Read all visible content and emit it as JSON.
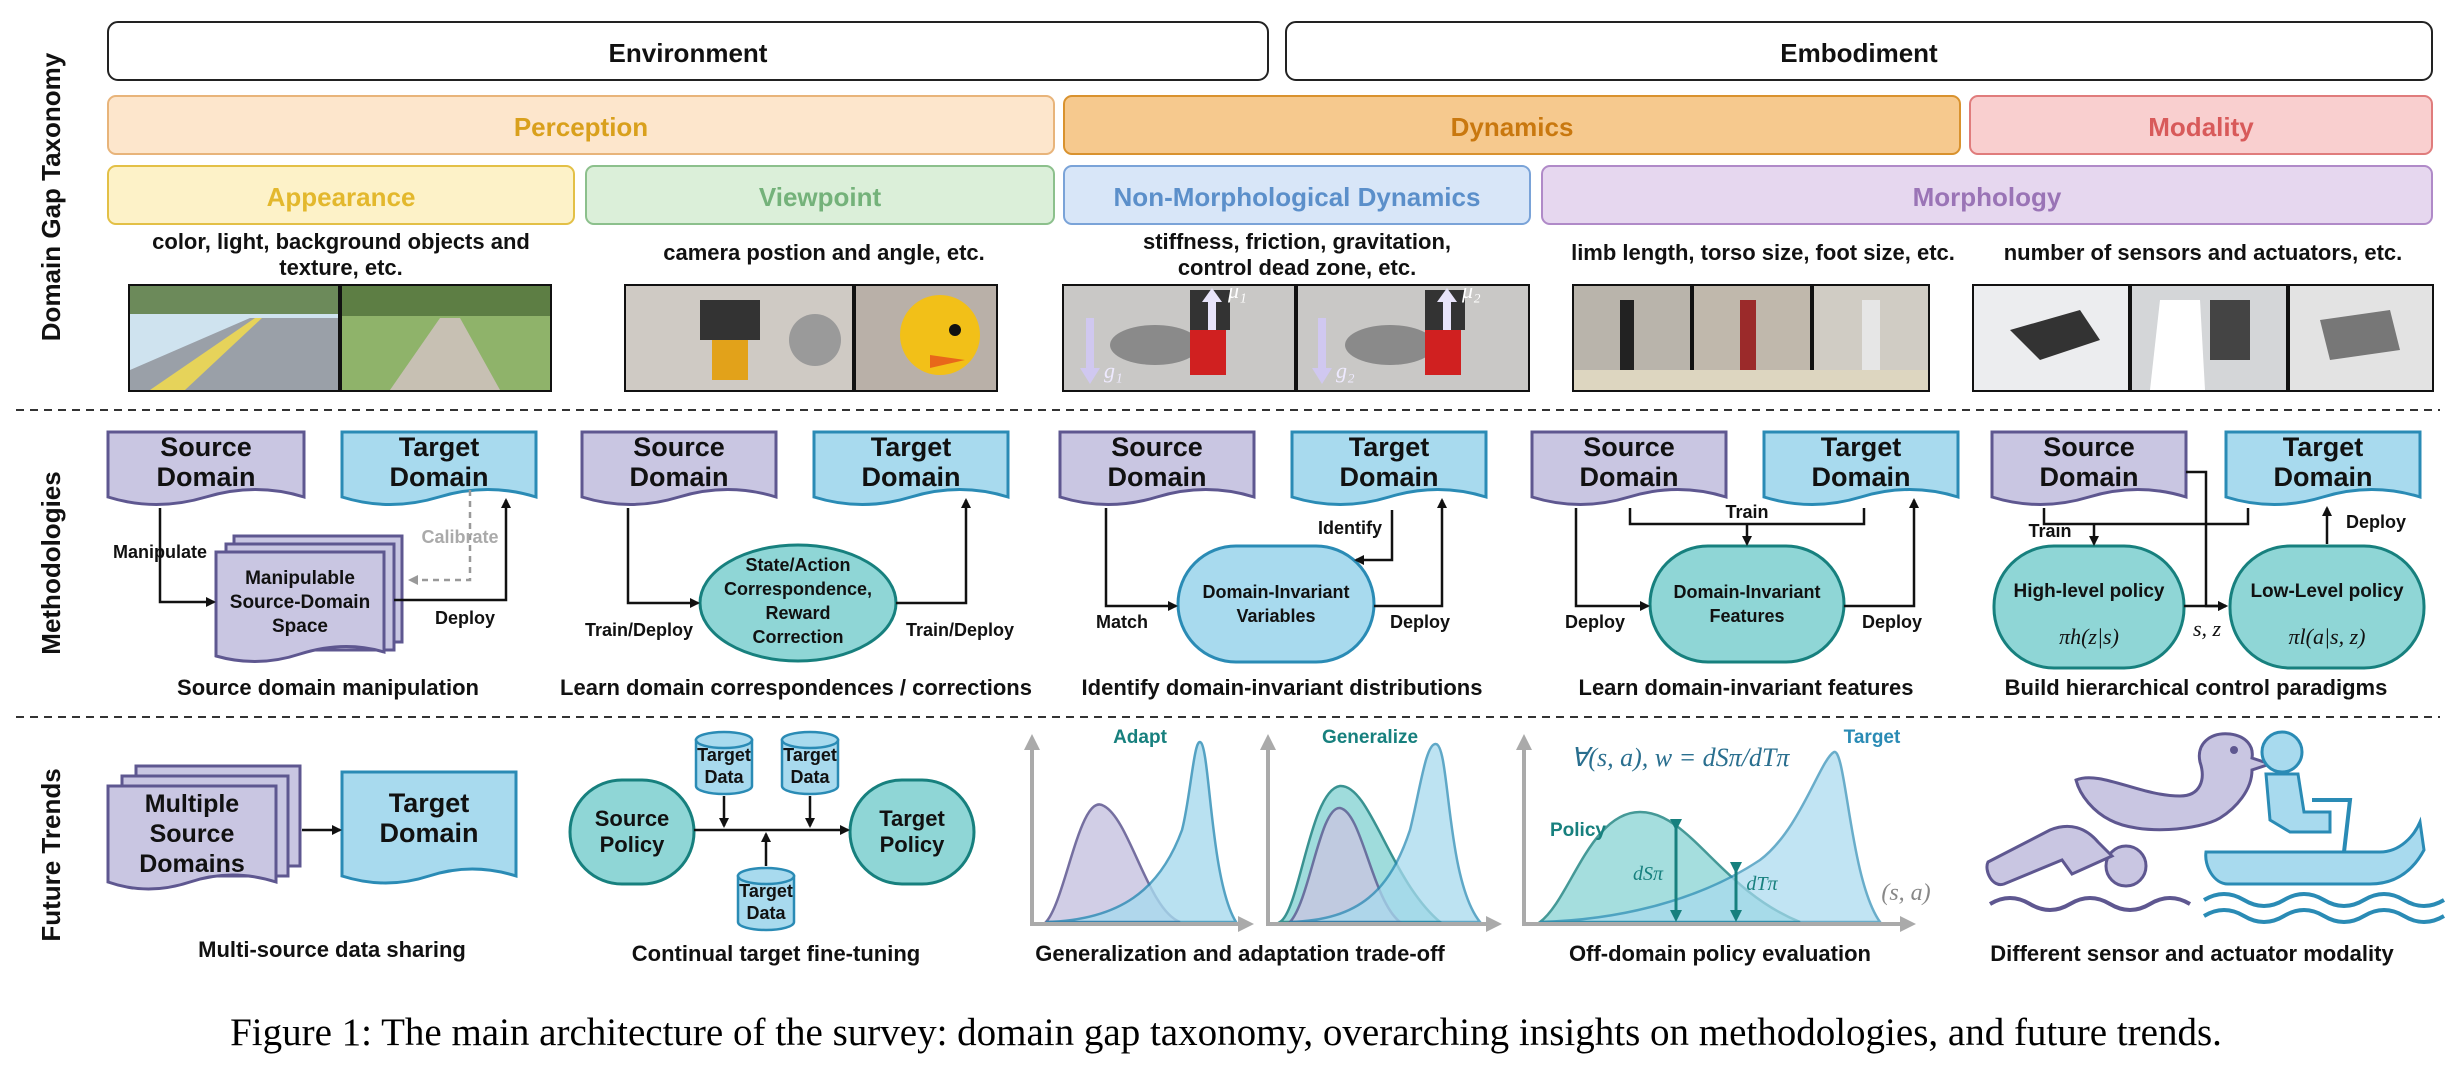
{
  "row_labels": {
    "taxonomy": "Domain Gap Taxonomy",
    "methodologies": "Methodologies",
    "trends": "Future Trends"
  },
  "taxonomy": {
    "environment": "Environment",
    "embodiment": "Embodiment",
    "perception": "Perception",
    "dynamics": "Dynamics",
    "modality": "Modality",
    "appearance": "Appearance",
    "viewpoint": "Viewpoint",
    "non_morph": "Non-Morphological Dynamics",
    "morphology": "Morphology",
    "desc_appearance_1": "color, light, background objects and",
    "desc_appearance_2": "texture, etc.",
    "desc_viewpoint": "camera postion and angle, etc.",
    "desc_nonmorph_1": "stiffness, friction, gravitation,",
    "desc_nonmorph_2": "control dead zone, etc.",
    "desc_morphology": "limb length, torso size, foot size, etc.",
    "desc_modality": "number of sensors and actuators, etc.",
    "g1": "g₁",
    "g2": "g₂",
    "mu1": "μ₁",
    "mu2": "μ₂"
  },
  "methods": {
    "source_1": "Source",
    "source_2": "Domain",
    "target_1": "Target",
    "target_2": "Domain",
    "m1": {
      "box_1": "Manipulable",
      "box_2": "Source-Domain",
      "box_3": "Space",
      "manipulate": "Manipulate",
      "calibrate": "Calibrate",
      "deploy": "Deploy",
      "caption": "Source domain manipulation"
    },
    "m2": {
      "box_1": "State/Action",
      "box_2": "Correspondence,",
      "box_3": "Reward",
      "box_4": "Correction",
      "left": "Train/Deploy",
      "right": "Train/Deploy",
      "caption": "Learn domain correspondences / corrections"
    },
    "m3": {
      "box_1": "Domain-Invariant",
      "box_2": "Variables",
      "identify": "Identify",
      "match": "Match",
      "deploy": "Deploy",
      "caption": "Identify domain-invariant distributions"
    },
    "m4": {
      "box_1": "Domain-Invariant",
      "box_2": "Features",
      "train": "Train",
      "deploy_left": "Deploy",
      "deploy_right": "Deploy",
      "caption": "Learn domain-invariant features"
    },
    "m5": {
      "high": "High-level policy",
      "high_sym": "πh(z|s)",
      "low": "Low-Level policy",
      "low_sym": "πl(a|s, z)",
      "train": "Train",
      "deploy": "Deploy",
      "sz": "s, z",
      "caption": "Build hierarchical control paradigms"
    }
  },
  "trends": {
    "t1": {
      "multi_1": "Multiple",
      "multi_2": "Source",
      "multi_3": "Domains",
      "target_1": "Target",
      "target_2": "Domain",
      "caption": "Multi-source data sharing"
    },
    "t2": {
      "source_1": "Source",
      "source_2": "Policy",
      "target_1": "Target",
      "target_2": "Policy",
      "data_1": "Target",
      "data_2": "Data",
      "caption": "Continual target fine-tuning"
    },
    "t3": {
      "adapt": "Adapt",
      "generalize": "Generalize",
      "caption": "Generalization and adaptation trade-off"
    },
    "t4": {
      "formula": "∀(s, a), w = dSπ/dTπ",
      "target": "Target",
      "policy": "Policy",
      "ds": "dSπ",
      "dt": "dTπ",
      "sa": "(s, a)",
      "caption": "Off-domain policy evaluation"
    },
    "t5": {
      "caption": "Different sensor and actuator modality"
    }
  },
  "caption": "Figure 1: The main architecture of the survey: domain gap taxonomy, overarching insights on methodologies, and future trends.",
  "colors": {
    "purple_fill": "#c9c6e2",
    "purple_stroke": "#5e5790",
    "blue_fill": "#a8daee",
    "blue_stroke": "#2a8bb5",
    "teal_fill": "#8fd6d6",
    "teal_stroke": "#17807e",
    "perception": "#d9a01c",
    "dynamics": "#d98c1a",
    "modality": "#d85a5a",
    "appearance": "#e3b82d",
    "viewpoint": "#74b27a",
    "nonmorph": "#5b8fca",
    "morphology": "#9a74b6"
  }
}
